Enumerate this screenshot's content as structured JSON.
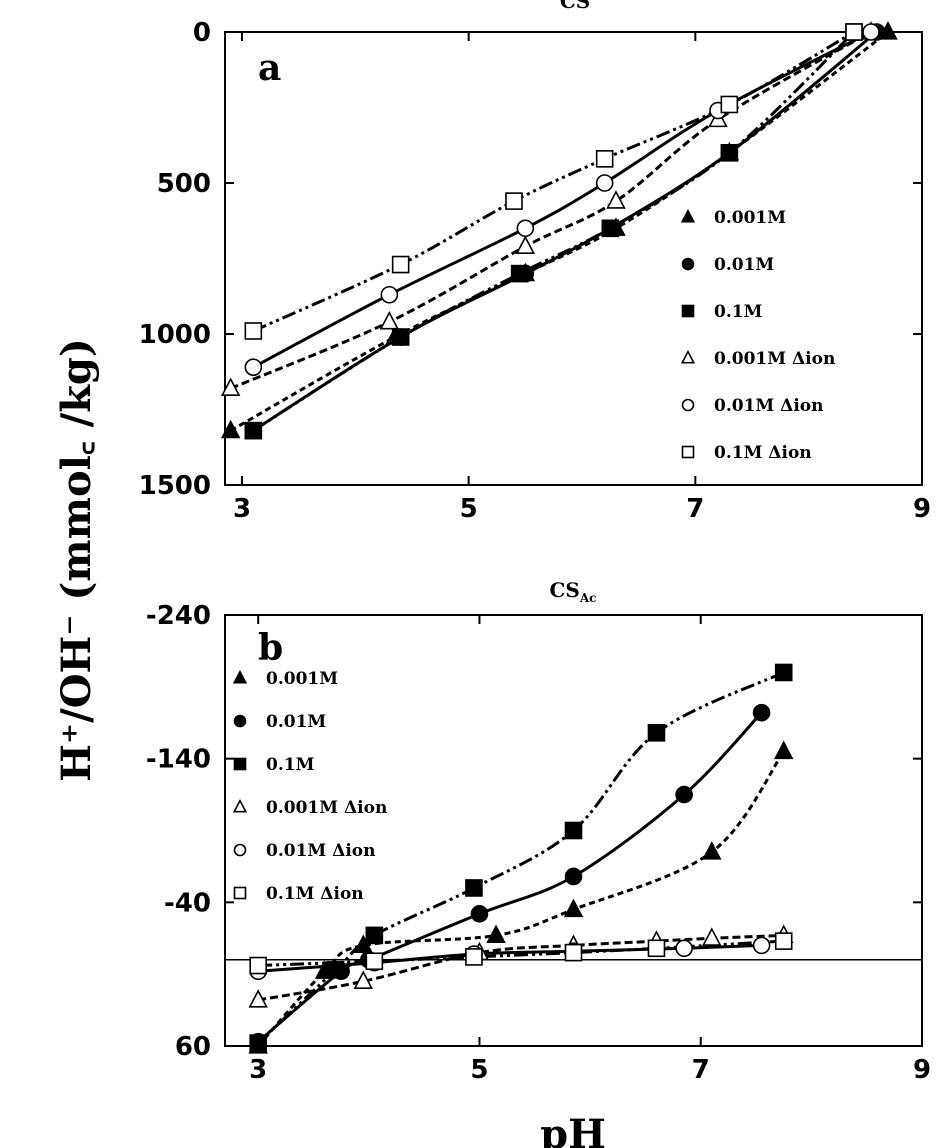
{
  "figure": {
    "ylabel": "H⁺/OH⁻ (mmol꜀ /kg)",
    "xlabel": "pH"
  },
  "chart_data": [
    {
      "type": "line",
      "panel_label": "a",
      "title": "CS",
      "xlim": [
        2.85,
        9
      ],
      "ylim": [
        0,
        1500
      ],
      "y_inverted": true,
      "xticks": [
        "3",
        "5",
        "7",
        "9"
      ],
      "xtick_values": [
        3,
        5,
        7,
        9
      ],
      "yticks": [
        "0",
        "500",
        "1000",
        "1500"
      ],
      "ytick_values": [
        0,
        500,
        1000,
        1500
      ],
      "legend_position": "right",
      "series": [
        {
          "name": "0.001M",
          "marker": "triangle",
          "filled": true,
          "x": [
            2.9,
            4.35,
            5.5,
            6.3,
            7.3,
            8.7
          ],
          "y": [
            1320,
            1010,
            800,
            650,
            400,
            0
          ]
        },
        {
          "name": "0.01M",
          "marker": "circle",
          "filled": true,
          "x": [
            3.1,
            4.4,
            5.5,
            6.25,
            7.3,
            8.6
          ],
          "y": [
            1320,
            1010,
            800,
            650,
            400,
            0
          ]
        },
        {
          "name": "0.1M",
          "marker": "square",
          "filled": true,
          "x": [
            3.1,
            4.4,
            5.45,
            6.25,
            7.3,
            8.4
          ],
          "y": [
            1320,
            1010,
            800,
            650,
            400,
            0
          ]
        },
        {
          "name": "0.001M  Δion",
          "marker": "triangle",
          "filled": false,
          "x": [
            2.9,
            4.3,
            5.5,
            6.3,
            7.2,
            8.55
          ],
          "y": [
            1180,
            960,
            710,
            560,
            290,
            0
          ]
        },
        {
          "name": "0.01M  Δion",
          "marker": "circle",
          "filled": false,
          "x": [
            3.1,
            4.3,
            5.5,
            6.2,
            7.2,
            8.55
          ],
          "y": [
            1110,
            870,
            650,
            500,
            260,
            0
          ]
        },
        {
          "name": "0.1M  Δion",
          "marker": "square",
          "filled": false,
          "x": [
            3.1,
            4.4,
            5.4,
            6.2,
            7.3,
            8.4
          ],
          "y": [
            990,
            770,
            560,
            420,
            240,
            0
          ]
        }
      ]
    },
    {
      "type": "line",
      "panel_label": "b",
      "title": "CS",
      "title_subscript": "Ac",
      "xlim": [
        2.7,
        9
      ],
      "ylim": [
        -240,
        60
      ],
      "y_inverted": false,
      "xticks": [
        "3",
        "5",
        "7",
        "9"
      ],
      "xtick_values": [
        3,
        5,
        7,
        9
      ],
      "yticks": [
        "-240",
        "-140",
        "-40",
        "60"
      ],
      "ytick_values": [
        -240,
        -140,
        -40,
        60
      ],
      "zero_line": 0,
      "legend_position": "top-left",
      "series": [
        {
          "name": "0.001M",
          "marker": "triangle",
          "filled": true,
          "x": [
            3.0,
            3.6,
            3.95,
            5.15,
            5.85,
            7.1,
            7.75
          ],
          "y": [
            60,
            8,
            -10,
            -17,
            -35,
            -75,
            -145
          ]
        },
        {
          "name": "0.01M",
          "marker": "circle",
          "filled": true,
          "x": [
            3.0,
            3.75,
            4.0,
            5.0,
            5.85,
            6.85,
            7.55
          ],
          "y": [
            57,
            8,
            0,
            -32,
            -58,
            -115,
            -172
          ]
        },
        {
          "name": "0.1M",
          "marker": "square",
          "filled": true,
          "x": [
            3.0,
            3.7,
            4.05,
            4.95,
            5.85,
            6.6,
            7.75
          ],
          "y": [
            58,
            7,
            -17,
            -50,
            -90,
            -158,
            -200
          ]
        },
        {
          "name": "0.001M Δion",
          "marker": "triangle",
          "filled": false,
          "x": [
            3.0,
            3.95,
            5.0,
            5.85,
            6.6,
            7.1,
            7.75
          ],
          "y": [
            28,
            15,
            -5,
            -10,
            -13,
            -15,
            -17
          ]
        },
        {
          "name": "0.01M   Δion",
          "marker": "circle",
          "filled": false,
          "x": [
            3.0,
            4.05,
            4.95,
            5.85,
            6.85,
            7.55
          ],
          "y": [
            8,
            2,
            -4,
            -6,
            -8,
            -10
          ]
        },
        {
          "name": "0.1M    Δion",
          "marker": "square",
          "filled": false,
          "x": [
            3.0,
            4.05,
            4.95,
            5.85,
            6.6,
            7.75
          ],
          "y": [
            4,
            1,
            -2,
            -5,
            -8,
            -13
          ]
        }
      ]
    }
  ]
}
